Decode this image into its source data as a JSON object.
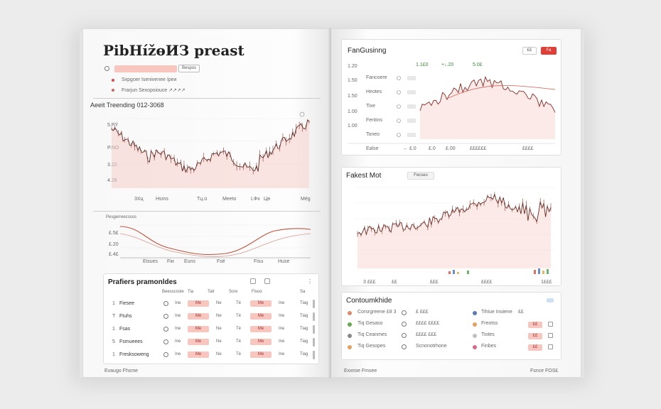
{
  "left": {
    "title": "PibHížөИЗ preast",
    "search_pill": "",
    "search_tag": "Bespos",
    "meta_rows": [
      "Sxpgoer Isenivenee íреи",
      "Frarjun Sexopsiouce ↗↗↗↗"
    ],
    "panel1": {
      "heading": "Aeeit Treending 012-3068",
      "y_ticks": [
        "5.PÝ",
        "P.NO",
        "3.20",
        "4.26"
      ],
      "x_ticks": [
        "3Хц",
        "Hsms",
        "Tц.ü",
        "Meeto",
        "LФх",
        "Цө",
        "Még"
      ]
    },
    "panel2": {
      "label": "Pesgerreecssos",
      "y_ticks": [
        "£.5£",
        "£.20",
        "£.4£"
      ],
      "x_ticks": [
        "Eisues",
        "Fiи",
        "Euns",
        "Fsë",
        "Fisu",
        "Huse"
      ]
    },
    "table": {
      "heading": "Prafiers pramonldes",
      "columns": [
        "Beesscosle",
        "Tia",
        "Tatr",
        "Scre",
        "Fisoo",
        "Sa"
      ],
      "rows": [
        {
          "n": "1",
          "name": "Fiesee",
          "v1": "Ne",
          "c2": "Ine",
          "c3": "Me",
          "c4": "Té",
          "c5": "Tiag"
        },
        {
          "n": "T",
          "name": "Ftuhs",
          "v1": "Ne",
          "c2": "Ine",
          "c3": "Me",
          "c4": "Té",
          "c5": "Tiag"
        },
        {
          "n": "1",
          "name": "Fsas",
          "v1": "Ne",
          "c2": "Ine",
          "c3": "Me",
          "c4": "Té",
          "c5": "Tiag"
        },
        {
          "n": "5",
          "name": "Fsmueees",
          "v1": "Ne",
          "c2": "Ine",
          "c3": "Me",
          "c4": "Té",
          "c5": "Tiag"
        },
        {
          "n": "1",
          "name": "Fresksoweng",
          "v1": "Ne",
          "c2": "Ine",
          "c3": "Me",
          "c4": "Té",
          "c5": "Tiag"
        }
      ]
    },
    "footer": "Evaugo Fhsme"
  },
  "right": {
    "card1": {
      "title": "FanGusinng",
      "btn_plain": "££",
      "btn_red": "Fa",
      "y_ticks": [
        "1.20",
        "1.50",
        "1.50",
        "1.00",
        "1.00"
      ],
      "rows": [
        "Fancoere",
        "Heotes",
        "Tixe",
        "Fentins",
        "Toneo"
      ],
      "top_vals": [
        "1.1£0",
        "+↓.20",
        "5.0£"
      ],
      "bottom": [
        "Ealse",
        "← £.0",
        "£.0",
        "£.00",
        "££££££",
        "££££"
      ]
    },
    "card2": {
      "title": "Fakest Mot",
      "tag": "Fecseo",
      "x_ticks": [
        "3 £££",
        "££",
        "£££",
        "££££",
        "1£££"
      ]
    },
    "card3": {
      "title": "Contoumkhide",
      "left_items": [
        {
          "label": "Corsrgreene £8 3",
          "extra": "£ £££"
        },
        {
          "label": "Tiq Gesaso",
          "extra": "££££ ££££"
        },
        {
          "label": "Tiq Ceanmes",
          "extra": "££££ £££"
        },
        {
          "label": "Tiq Gesopes",
          "extra": "Scnonotrhone"
        }
      ],
      "right_items": [
        {
          "label": "Tihiue Inoiene",
          "val": "££"
        },
        {
          "label": "Freotss",
          "val": "££"
        },
        {
          "label": "Tiotes",
          "val": "££"
        },
        {
          "label": "Finbes",
          "val": "££"
        }
      ]
    },
    "footer_left": "Exxnse Fmsee",
    "footer_right": "Fsnce FOS£"
  },
  "colors": {
    "accent_red": "#e03e36",
    "line": "#5b2a24",
    "fill": "#f7d0ca",
    "pill": "#f6c6bf"
  }
}
